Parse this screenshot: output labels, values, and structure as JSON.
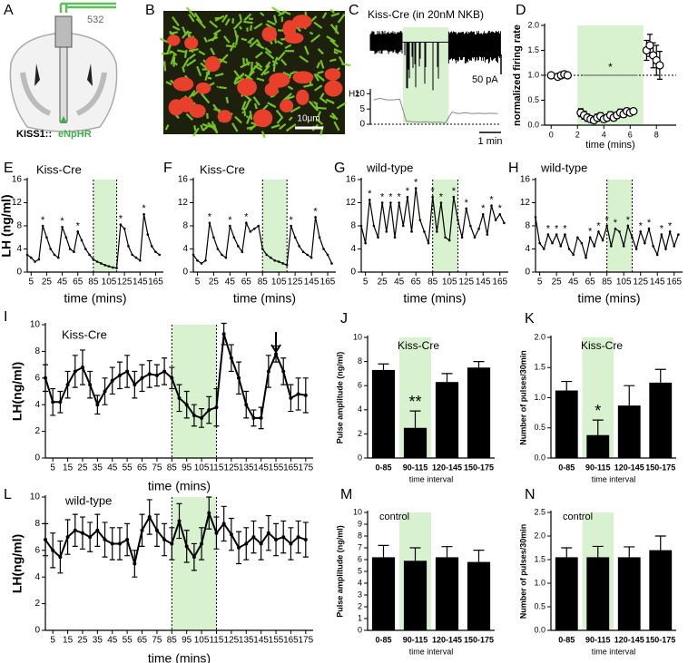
{
  "figure": {
    "diagram": {
      "panel": "A",
      "laser": "532",
      "genotype": "KISS1::",
      "construct": "eNpHR"
    },
    "micrograph": {
      "panel": "B",
      "scale": "10μm"
    }
  },
  "chart_data": [
    {
      "panel": "C",
      "type": "line",
      "title": "Kiss-Cre (in 20nM NKB)",
      "ylabel": "Hz",
      "scale_current": "50 pA",
      "scale_time": "1 min",
      "categories": [
        null,
        null,
        null,
        null,
        null,
        null,
        null,
        null,
        null,
        null,
        null,
        null,
        null,
        null,
        null,
        null,
        null,
        null,
        null,
        null
      ],
      "values": [
        8,
        8.5,
        8,
        8,
        8.2,
        1,
        0.8,
        0.7,
        0.8,
        0.6,
        0.7,
        0.5,
        4,
        3.5,
        3.8,
        3.5,
        3.6,
        3.5,
        3.6,
        3.5
      ],
      "color": "#888888",
      "ylim": [
        0,
        11
      ],
      "yticks": [
        0,
        5,
        10
      ],
      "highlight": [
        4.5,
        11.5
      ],
      "highlight_color": "#d8f1cf"
    },
    {
      "panel": "D",
      "type": "scatter",
      "ylabel": "normalized firing rate",
      "xlabel": "time (mins)",
      "annotation": "*",
      "x": [
        0,
        0.5,
        0.75,
        1,
        1.25,
        2.25,
        2.5,
        2.75,
        3,
        3.25,
        3.5,
        3.75,
        4,
        4.25,
        4.5,
        4.75,
        5,
        5.25,
        5.5,
        5.75,
        6,
        6.25,
        7.25,
        7.5,
        7.75,
        8,
        8.25
      ],
      "values": [
        1,
        0.97,
        1,
        1.02,
        1,
        0.25,
        0.2,
        0.15,
        0.12,
        0.1,
        0.15,
        0.18,
        0.12,
        0.15,
        0.2,
        0.15,
        0.2,
        0.25,
        0.22,
        0.28,
        0.25,
        0.28,
        1.5,
        1.6,
        1.4,
        1.3,
        1.2
      ],
      "errors": [
        0.03,
        0.04,
        0.03,
        0.03,
        0.03,
        0.08,
        0.08,
        0.07,
        0.06,
        0.06,
        0.07,
        0.07,
        0.06,
        0.06,
        0.07,
        0.06,
        0.06,
        0.07,
        0.06,
        0.06,
        0.05,
        0.05,
        0.2,
        0.22,
        0.25,
        0.3,
        0.28
      ],
      "color": "#000000",
      "xlim": [
        -0.5,
        9.5
      ],
      "xticks": [
        0,
        2,
        4,
        6,
        8
      ],
      "ylim": [
        0,
        2
      ],
      "yticks": [
        {
          "value": 0,
          "label": "0.0"
        },
        0.5,
        {
          "value": 1,
          "label": "1.0"
        },
        1.5,
        {
          "value": 2,
          "label": "2.0"
        }
      ],
      "highlight": [
        2,
        7
      ],
      "highlight_color": "#d8f1cf",
      "reference_line": 1
    },
    {
      "panel": "E",
      "type": "line",
      "title": "Kiss-Cre",
      "ylabel": "LH (ng/ml)",
      "xlabel": "time (mins)",
      "x": [
        0,
        5,
        10,
        15,
        20,
        25,
        30,
        35,
        40,
        45,
        50,
        55,
        60,
        65,
        70,
        75,
        80,
        85,
        90,
        95,
        100,
        105,
        110,
        115,
        120,
        125,
        130,
        135,
        140,
        145,
        150,
        155,
        160,
        165,
        170
      ],
      "values": [
        3,
        2.5,
        1.8,
        2.2,
        8,
        6,
        4,
        3,
        2.5,
        7.8,
        6,
        4,
        3.5,
        7,
        5.5,
        4,
        3,
        2.2,
        1.8,
        1.5,
        1.2,
        1,
        0.8,
        0.7,
        8.2,
        7.5,
        4.5,
        3,
        2.5,
        2,
        10,
        6.5,
        4.5,
        3.5,
        3
      ],
      "annotations": [
        null,
        null,
        null,
        null,
        "*",
        null,
        null,
        null,
        null,
        "*",
        null,
        null,
        null,
        "*",
        null,
        null,
        null,
        null,
        null,
        null,
        null,
        null,
        null,
        null,
        "*",
        null,
        null,
        null,
        null,
        null,
        "*",
        null,
        null,
        null,
        null
      ],
      "color": "#000000",
      "xlim": [
        0,
        175
      ],
      "xticks": [
        5,
        25,
        45,
        65,
        85,
        105,
        125,
        145,
        165
      ],
      "ylim": [
        0,
        16
      ],
      "yticks": [
        0,
        4,
        8,
        12,
        16
      ],
      "highlight": [
        85,
        115
      ],
      "highlight_color": "#d8f1cf",
      "highlight_edges": true
    },
    {
      "panel": "F",
      "type": "line",
      "title": "Kiss-Cre",
      "xlabel": "time (mins)",
      "x": [
        0,
        5,
        10,
        15,
        20,
        25,
        30,
        35,
        40,
        45,
        50,
        55,
        60,
        65,
        70,
        75,
        80,
        85,
        90,
        95,
        100,
        105,
        110,
        115,
        120,
        125,
        130,
        135,
        140,
        145,
        150,
        155,
        160,
        165,
        170
      ],
      "values": [
        3,
        2,
        1.5,
        2,
        8.5,
        6,
        4,
        3,
        2.5,
        8,
        6,
        4.5,
        3.5,
        8.5,
        7,
        7.5,
        8,
        4,
        3,
        2.5,
        2,
        1.8,
        1.5,
        1.2,
        8,
        6,
        4.5,
        3.5,
        3,
        2.5,
        9.5,
        6,
        4,
        3,
        1.5
      ],
      "annotations": [
        null,
        null,
        null,
        null,
        "*",
        null,
        null,
        null,
        null,
        "*",
        null,
        null,
        null,
        "*",
        null,
        null,
        null,
        null,
        null,
        null,
        null,
        null,
        null,
        null,
        "*",
        null,
        null,
        null,
        null,
        null,
        "*",
        null,
        null,
        null,
        null
      ],
      "color": "#000000",
      "xlim": [
        0,
        175
      ],
      "xticks": [
        5,
        25,
        45,
        65,
        85,
        105,
        125,
        145,
        165
      ],
      "ylim": [
        0,
        16
      ],
      "yticks": [
        0,
        4,
        8,
        12,
        16
      ],
      "highlight": [
        85,
        115
      ],
      "highlight_color": "#d8f1cf",
      "highlight_edges": true
    },
    {
      "panel": "G",
      "type": "line",
      "title": "wild-type",
      "xlabel": "time (mins)",
      "x": [
        0,
        5,
        10,
        15,
        20,
        25,
        30,
        35,
        40,
        45,
        50,
        55,
        60,
        65,
        70,
        75,
        80,
        85,
        90,
        95,
        100,
        105,
        110,
        115,
        120,
        125,
        130,
        135,
        140,
        145,
        150,
        155,
        160,
        165,
        170
      ],
      "values": [
        8,
        5,
        12.5,
        8,
        6,
        12,
        7,
        12,
        6,
        12,
        8,
        13,
        7,
        14.5,
        9,
        7,
        5,
        13,
        7,
        12,
        6,
        5.5,
        13,
        9,
        6,
        11,
        8,
        6,
        7.5,
        10,
        6.5,
        11.5,
        9,
        10,
        8.5
      ],
      "annotations": [
        null,
        null,
        "*",
        null,
        null,
        "*",
        null,
        "*",
        null,
        "*",
        null,
        "*",
        null,
        "*",
        null,
        null,
        null,
        "*",
        null,
        "*",
        null,
        null,
        "*",
        null,
        null,
        "*",
        null,
        null,
        null,
        "*",
        null,
        "*",
        null,
        "*",
        null
      ],
      "color": "#000000",
      "xlim": [
        0,
        175
      ],
      "xticks": [
        5,
        25,
        45,
        65,
        85,
        105,
        125,
        145,
        165
      ],
      "ylim": [
        0,
        16
      ],
      "yticks": [
        0,
        4,
        8,
        12,
        16
      ],
      "highlight": [
        85,
        115
      ],
      "highlight_color": "#d8f1cf",
      "highlight_edges": true
    },
    {
      "panel": "H",
      "type": "line",
      "title": "wild-type",
      "xlabel": "time (mins)",
      "x": [
        0,
        5,
        10,
        15,
        20,
        25,
        30,
        35,
        40,
        45,
        50,
        55,
        60,
        65,
        70,
        75,
        80,
        85,
        90,
        95,
        100,
        105,
        110,
        115,
        120,
        125,
        130,
        135,
        140,
        145,
        150,
        155,
        160,
        165,
        170
      ],
      "values": [
        9.5,
        5,
        4,
        6.5,
        5,
        6.5,
        4.5,
        6.5,
        4,
        3,
        6,
        5,
        2.5,
        6,
        4.5,
        7,
        5.5,
        8,
        4.5,
        7.5,
        7,
        4.5,
        8,
        6,
        4,
        7,
        5,
        7.5,
        4.5,
        3,
        6.5,
        4,
        7,
        4.5,
        6.5
      ],
      "annotations": [
        null,
        null,
        null,
        "*",
        null,
        "*",
        null,
        "*",
        null,
        null,
        null,
        null,
        null,
        "*",
        null,
        "*",
        null,
        "*",
        null,
        "*",
        null,
        null,
        "*",
        null,
        null,
        "*",
        null,
        "*",
        null,
        null,
        "*",
        null,
        "*",
        null,
        null
      ],
      "color": "#000000",
      "xlim": [
        0,
        175
      ],
      "xticks": [
        5,
        25,
        45,
        65,
        85,
        105,
        125,
        145,
        165
      ],
      "ylim": [
        0,
        16
      ],
      "yticks": [
        0,
        4,
        8,
        12,
        16
      ],
      "highlight": [
        85,
        115
      ],
      "highlight_color": "#d8f1cf",
      "highlight_edges": true
    },
    {
      "panel": "I",
      "type": "line",
      "title": "Kiss-Cre",
      "ylabel": "LH(ng/ml)",
      "xlabel": "time (mins)",
      "x": [
        0,
        5,
        10,
        15,
        20,
        25,
        30,
        35,
        40,
        45,
        50,
        55,
        60,
        65,
        70,
        75,
        80,
        85,
        90,
        95,
        100,
        105,
        110,
        115,
        120,
        125,
        130,
        135,
        140,
        145,
        150,
        155,
        160,
        165,
        170,
        175
      ],
      "values": [
        6,
        4.2,
        4.2,
        5.5,
        6.5,
        6.8,
        5.5,
        4,
        5,
        5.8,
        6.2,
        6.5,
        5.5,
        6,
        6.3,
        6.2,
        6.5,
        6,
        4.5,
        4,
        3.2,
        3,
        3.6,
        3.8,
        9.3,
        7.5,
        6,
        4,
        3,
        3,
        6.5,
        7.8,
        6.5,
        4.5,
        4.8,
        4.7
      ],
      "errors": [
        1,
        1,
        0.8,
        1,
        1.2,
        1.3,
        1,
        0.7,
        1,
        1,
        1,
        1.2,
        1,
        1,
        1,
        0.8,
        1,
        0.8,
        1,
        1,
        0.8,
        0.7,
        1,
        1.4,
        0.8,
        1,
        1.2,
        1,
        0.6,
        0.8,
        1.2,
        0.6,
        1,
        1,
        1.2,
        1.3
      ],
      "color": "#000000",
      "xlim": [
        0,
        180
      ],
      "xticks": [
        5,
        15,
        25,
        35,
        45,
        55,
        65,
        75,
        85,
        95,
        105,
        115,
        125,
        135,
        145,
        155,
        165,
        175
      ],
      "ylim": [
        0,
        10
      ],
      "yticks": [
        0,
        2,
        4,
        6,
        8,
        10
      ],
      "highlight": [
        85,
        115
      ],
      "highlight_color": "#d8f1cf",
      "highlight_edges": true,
      "arrow": 155
    },
    {
      "panel": "J",
      "type": "bar",
      "title": "Kiss-Cre",
      "ylabel": "Pulse amplitude (ng/ml)",
      "xlabel": "time interval",
      "categories": [
        "0-85",
        "90-115",
        "120-145",
        "150-175"
      ],
      "values": [
        7.3,
        2.5,
        6.3,
        7.5
      ],
      "errors": [
        0.5,
        1.4,
        0.7,
        0.5
      ],
      "annotations": [
        null,
        "**",
        null,
        null
      ],
      "color": "#000000",
      "ylim": [
        0,
        10
      ],
      "yticks": [
        0,
        2,
        4,
        6,
        8,
        10
      ],
      "highlight": 1,
      "highlight_color": "#d8f1cf"
    },
    {
      "panel": "K",
      "type": "bar",
      "title": "Kiss-Cre",
      "ylabel": "Number of pulses/30min",
      "xlabel": "time interval",
      "categories": [
        "0-85",
        "90-115",
        "120-145",
        "150-175"
      ],
      "values": [
        1.12,
        0.38,
        0.87,
        1.25
      ],
      "errors": [
        0.15,
        0.25,
        0.33,
        0.22
      ],
      "annotations": [
        null,
        "*",
        null,
        null
      ],
      "color": "#000000",
      "ylim": [
        0,
        2
      ],
      "yticks": [
        {
          "value": 0,
          "label": "0.0"
        },
        0.5,
        {
          "value": 1,
          "label": "1.0"
        },
        1.5,
        {
          "value": 2,
          "label": "2.0"
        }
      ],
      "highlight": 1,
      "highlight_color": "#d8f1cf"
    },
    {
      "panel": "L",
      "type": "line",
      "title": "wild-type",
      "ylabel": "LH(ng/ml)",
      "xlabel": "time (mins)",
      "x": [
        0,
        5,
        10,
        15,
        20,
        25,
        30,
        35,
        40,
        45,
        50,
        55,
        60,
        65,
        70,
        75,
        80,
        85,
        90,
        95,
        100,
        105,
        110,
        115,
        120,
        125,
        130,
        135,
        140,
        145,
        150,
        155,
        160,
        165,
        170,
        175
      ],
      "values": [
        6.8,
        6,
        5.5,
        7,
        7.5,
        7.3,
        7,
        7.5,
        6.8,
        6.5,
        6.5,
        6.8,
        5,
        7.5,
        8.5,
        7.5,
        6.8,
        6.5,
        8.2,
        6.3,
        5.5,
        6.5,
        8.8,
        7.3,
        8,
        7.2,
        6.2,
        6.5,
        7,
        6.5,
        7.3,
        6.8,
        7,
        6.5,
        7,
        6.8
      ],
      "errors": [
        1.2,
        1.3,
        1.2,
        1.3,
        1.2,
        1.2,
        1.1,
        1.2,
        1.3,
        1.2,
        1.2,
        1.2,
        1,
        1.2,
        1.3,
        1.2,
        1.2,
        1.2,
        1.3,
        1.2,
        1,
        1.2,
        1.2,
        1.2,
        1.3,
        1.2,
        1.2,
        1.2,
        1.2,
        1.2,
        1.3,
        1.2,
        1.2,
        1.2,
        1.2,
        1.3
      ],
      "color": "#000000",
      "xlim": [
        0,
        180
      ],
      "xticks": [
        5,
        15,
        25,
        35,
        45,
        55,
        65,
        75,
        85,
        95,
        105,
        115,
        125,
        135,
        145,
        155,
        165,
        175
      ],
      "ylim": [
        0,
        10
      ],
      "yticks": [
        0,
        2,
        4,
        6,
        8,
        10
      ],
      "highlight": [
        85,
        115
      ],
      "highlight_color": "#d8f1cf",
      "highlight_edges": true
    },
    {
      "panel": "M",
      "type": "bar",
      "title": "control",
      "ylabel": "Pulse amplitude (ng/ml)",
      "xlabel": "time interval",
      "categories": [
        "0-85",
        "90-115",
        "120-145",
        "150-175"
      ],
      "values": [
        6.2,
        5.9,
        6.2,
        5.8
      ],
      "errors": [
        1,
        1.1,
        0.9,
        1
      ],
      "color": "#000000",
      "ylim": [
        0,
        10
      ],
      "yticks": [
        0,
        1,
        2,
        3,
        4,
        5,
        6,
        7,
        8,
        9,
        10
      ],
      "highlight": 1,
      "highlight_color": "#d8f1cf"
    },
    {
      "panel": "N",
      "type": "bar",
      "title": "control",
      "ylabel": "Number of pulses/30min",
      "xlabel": "time interval",
      "categories": [
        "0-85",
        "90-115",
        "120-145",
        "150-175"
      ],
      "values": [
        1.55,
        1.55,
        1.55,
        1.7
      ],
      "errors": [
        0.2,
        0.23,
        0.22,
        0.3
      ],
      "color": "#000000",
      "ylim": [
        0,
        2.5
      ],
      "yticks": [
        {
          "value": 0,
          "label": "0.0"
        },
        0.5,
        {
          "value": 1,
          "label": "1.0"
        },
        1.5,
        {
          "value": 2,
          "label": "2.0"
        },
        2.5
      ],
      "highlight": 1,
      "highlight_color": "#d8f1cf"
    }
  ]
}
